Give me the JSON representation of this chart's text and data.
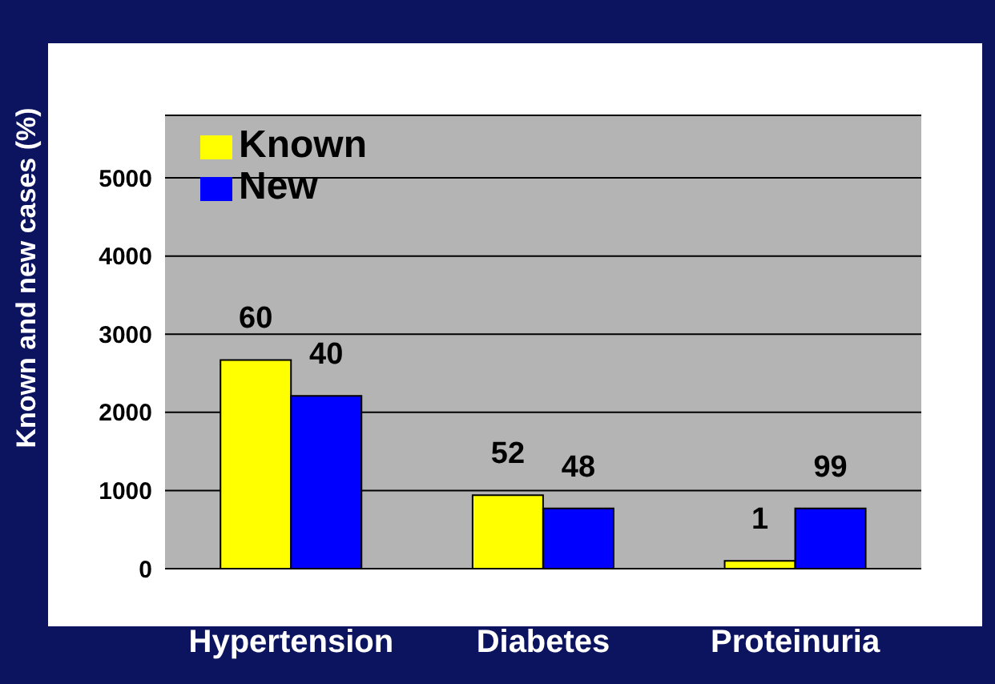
{
  "chart_data": {
    "type": "bar",
    "ylabel": "Known and new cases (%)",
    "categories": [
      "Hypertension",
      "Diabetes",
      "Proteinuria"
    ],
    "series": [
      {
        "name": "Known",
        "color": "#ffff00",
        "values": [
          2670,
          940,
          100
        ]
      },
      {
        "name": "New",
        "color": "#0000ff",
        "values": [
          2210,
          770,
          770
        ]
      }
    ],
    "annotations": [
      {
        "text": "60",
        "x": "Hypertension",
        "y": 2670
      },
      {
        "text": "40",
        "x": "Hypertension",
        "y": 2210
      },
      {
        "text": "52",
        "x": "Diabetes",
        "y": 940
      },
      {
        "text": "48",
        "x": "Diabetes",
        "y": 770
      },
      {
        "text": "1",
        "x": "Proteinuria",
        "y": 100
      },
      {
        "text": "99",
        "x": "Proteinuria",
        "y": 770
      }
    ],
    "ylim": [
      0,
      5800
    ],
    "yticks": [
      0,
      1000,
      2000,
      3000,
      4000,
      5000
    ],
    "grid": "y",
    "legend": "top left"
  }
}
